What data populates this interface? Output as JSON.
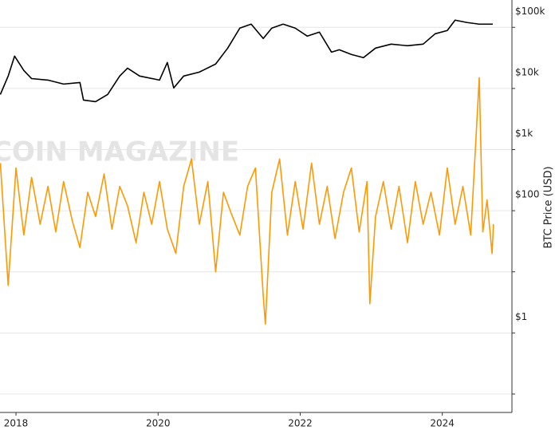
{
  "chart_data": {
    "type": "line",
    "y_label": "BTC Price (USD)",
    "watermark": "COIN MAGAZINE",
    "log_y": true,
    "grid": true,
    "xlim": [
      2017.775,
      2024.98
    ],
    "xticks": [
      2018,
      2020,
      2022,
      2024
    ],
    "ylim": [
      0.05,
      280000
    ],
    "yticks": [
      {
        "value": 100000,
        "label": "$100k"
      },
      {
        "value": 10000,
        "label": "$10k"
      },
      {
        "value": 1000,
        "label": "$1k"
      },
      {
        "value": 100,
        "label": "$100"
      },
      {
        "value": 10,
        "label": null
      },
      {
        "value": 1,
        "label": "$1"
      },
      {
        "value": 0.1,
        "label": null
      }
    ],
    "series": [
      {
        "color": "#ff9900",
        "x": [
          2017.78,
          2017.89,
          2018.0,
          2018.11,
          2018.22,
          2018.34,
          2018.45,
          2018.56,
          2018.67,
          2018.79,
          2018.9,
          2019.01,
          2019.12,
          2019.24,
          2019.35,
          2019.46,
          2019.57,
          2019.69,
          2019.8,
          2019.91,
          2020.02,
          2020.13,
          2020.25,
          2020.36,
          2020.47,
          2020.58,
          2020.7,
          2020.81,
          2020.92,
          2021.03,
          2021.15,
          2021.26,
          2021.37,
          2021.48,
          2021.51,
          2021.6,
          2021.71,
          2021.82,
          2021.93,
          2022.04,
          2022.16,
          2022.27,
          2022.38,
          2022.49,
          2022.61,
          2022.72,
          2022.83,
          2022.94,
          2022.98,
          2023.06,
          2023.17,
          2023.28,
          2023.39,
          2023.51,
          2023.62,
          2023.73,
          2023.84,
          2023.96,
          2024.07,
          2024.18,
          2024.29,
          2024.4,
          2024.52,
          2024.57,
          2024.63,
          2024.7,
          2024.72
        ],
        "values": [
          600,
          6,
          500,
          40,
          350,
          60,
          250,
          45,
          300,
          70,
          25,
          200,
          80,
          400,
          50,
          250,
          120,
          30,
          200,
          60,
          300,
          50,
          20,
          250,
          700,
          60,
          300,
          10,
          200,
          90,
          40,
          250,
          500,
          4,
          1.4,
          200,
          700,
          40,
          300,
          50,
          600,
          60,
          250,
          35,
          200,
          500,
          45,
          300,
          3,
          80,
          300,
          50,
          250,
          30,
          300,
          60,
          200,
          40,
          500,
          60,
          250,
          40,
          15000,
          45,
          150,
          20,
          60
        ]
      },
      {
        "color": "#000000",
        "x": [
          2017.78,
          2017.89,
          2017.98,
          2018.11,
          2018.22,
          2018.45,
          2018.67,
          2018.9,
          2018.95,
          2019.12,
          2019.29,
          2019.46,
          2019.57,
          2019.74,
          2020.02,
          2020.13,
          2020.22,
          2020.36,
          2020.58,
          2020.81,
          2020.98,
          2021.15,
          2021.31,
          2021.48,
          2021.6,
          2021.76,
          2021.93,
          2022.1,
          2022.27,
          2022.44,
          2022.55,
          2022.72,
          2022.89,
          2023.06,
          2023.28,
          2023.51,
          2023.73,
          2023.9,
          2024.07,
          2024.18,
          2024.35,
          2024.52,
          2024.71
        ],
        "values": [
          7980,
          15960,
          33800,
          19700,
          14500,
          13700,
          11800,
          12500,
          6460,
          6080,
          7980,
          15960,
          21500,
          15960,
          13700,
          26600,
          10200,
          15960,
          18500,
          25100,
          45700,
          97000,
          112800,
          65600,
          97000,
          112800,
          97000,
          71800,
          83500,
          39300,
          43000,
          36000,
          31900,
          45700,
          53100,
          50000,
          53100,
          78500,
          88700,
          131000,
          119800,
          112800,
          112800
        ]
      }
    ]
  }
}
